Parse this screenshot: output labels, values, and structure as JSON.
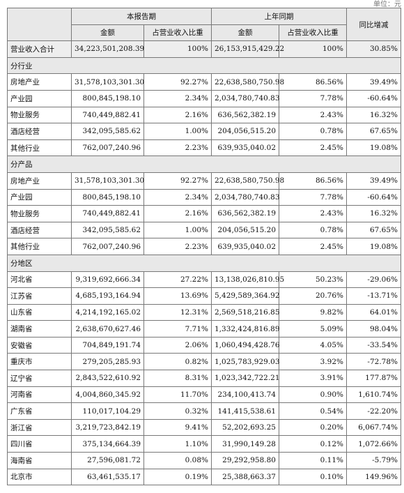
{
  "unit_text": "单位：元",
  "header": {
    "current_period": "本报告期",
    "prior_period": "上年同期",
    "yoy_change": "同比增减",
    "amount": "金额",
    "share": "占营业收入比重"
  },
  "total_row": [
    "营业收入合计",
    "34,223,501,208.39",
    "100%",
    "26,153,915,429.22",
    "100%",
    "30.85%"
  ],
  "sections": [
    {
      "title": "分行业",
      "rows": [
        [
          "房地产业",
          "31,578,103,301.30",
          "92.27%",
          "22,638,580,750.98",
          "86.56%",
          "39.49%"
        ],
        [
          "产业园",
          "800,845,198.10",
          "2.34%",
          "2,034,780,740.83",
          "7.78%",
          "-60.64%"
        ],
        [
          "物业服务",
          "740,449,882.41",
          "2.16%",
          "636,562,382.19",
          "2.43%",
          "16.32%"
        ],
        [
          "酒店经营",
          "342,095,585.62",
          "1.00%",
          "204,056,515.20",
          "0.78%",
          "67.65%"
        ],
        [
          "其他行业",
          "762,007,240.96",
          "2.23%",
          "639,935,040.02",
          "2.45%",
          "19.08%"
        ]
      ]
    },
    {
      "title": "分产品",
      "rows": [
        [
          "房地产业",
          "31,578,103,301.30",
          "92.27%",
          "22,638,580,750.98",
          "86.56%",
          "39.49%"
        ],
        [
          "产业园",
          "800,845,198.10",
          "2.34%",
          "2,034,780,740.83",
          "7.78%",
          "-60.64%"
        ],
        [
          "物业服务",
          "740,449,882.41",
          "2.16%",
          "636,562,382.19",
          "2.43%",
          "16.32%"
        ],
        [
          "酒店经营",
          "342,095,585.62",
          "1.00%",
          "204,056,515.20",
          "0.78%",
          "67.65%"
        ],
        [
          "其他行业",
          "762,007,240.96",
          "2.23%",
          "639,935,040.02",
          "2.45%",
          "19.08%"
        ]
      ]
    },
    {
      "title": "分地区",
      "rows": [
        [
          "河北省",
          "9,319,692,666.34",
          "27.22%",
          "13,138,026,810.95",
          "50.23%",
          "-29.06%"
        ],
        [
          "江苏省",
          "4,685,193,164.94",
          "13.69%",
          "5,429,589,364.92",
          "20.76%",
          "-13.71%"
        ],
        [
          "山东省",
          "4,214,192,165.02",
          "12.31%",
          "2,569,518,216.85",
          "9.82%",
          "64.01%"
        ],
        [
          "湖南省",
          "2,638,670,627.46",
          "7.71%",
          "1,332,424,816.89",
          "5.09%",
          "98.04%"
        ],
        [
          "安徽省",
          "704,849,191.74",
          "2.06%",
          "1,060,494,428.76",
          "4.05%",
          "-33.54%"
        ],
        [
          "重庆市",
          "279,205,285.93",
          "0.82%",
          "1,025,783,929.03",
          "3.92%",
          "-72.78%"
        ],
        [
          "辽宁省",
          "2,843,522,610.92",
          "8.31%",
          "1,023,342,722.21",
          "3.91%",
          "177.87%"
        ],
        [
          "河南省",
          "4,004,860,345.92",
          "11.70%",
          "234,100,413.74",
          "0.90%",
          "1,610.74%"
        ],
        [
          "广东省",
          "110,017,104.29",
          "0.32%",
          "141,415,538.61",
          "0.54%",
          "-22.20%"
        ],
        [
          "浙江省",
          "3,219,723,842.19",
          "9.41%",
          "52,202,693.25",
          "0.20%",
          "6,067.74%"
        ],
        [
          "四川省",
          "375,134,664.39",
          "1.10%",
          "31,990,149.28",
          "0.12%",
          "1,072.66%"
        ],
        [
          "海南省",
          "27,596,081.72",
          "0.08%",
          "29,292,958.80",
          "0.11%",
          "-5.79%"
        ],
        [
          "北京市",
          "63,461,535.17",
          "0.19%",
          "25,388,663.37",
          "0.10%",
          "149.96%"
        ]
      ]
    }
  ]
}
